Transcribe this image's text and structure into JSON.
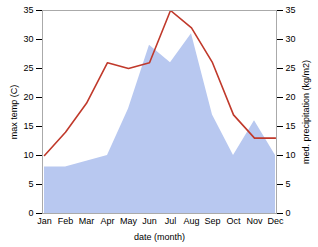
{
  "chart_data": {
    "type": "line",
    "categories": [
      "Jan",
      "Feb",
      "Mar",
      "Apr",
      "May",
      "Jun",
      "Jul",
      "Aug",
      "Sep",
      "Oct",
      "Nov",
      "Dec"
    ],
    "series": [
      {
        "type": "area",
        "color": "#b8c8f0",
        "values": [
          8,
          8,
          9,
          10,
          18,
          29,
          26,
          31,
          17,
          10,
          16,
          10
        ]
      },
      {
        "type": "line",
        "color": "#c0392b",
        "values": [
          10,
          14,
          19,
          26,
          25,
          26,
          35,
          32,
          26,
          17,
          13,
          13
        ]
      }
    ],
    "xlabel": "date (month)",
    "ylabel": "max temp (C)",
    "y2label": "med. precipitation (kg/m2)",
    "ylim": [
      0,
      35
    ],
    "yticks": [
      0,
      5,
      10,
      15,
      20,
      25,
      30,
      35
    ],
    "y2lim": [
      0,
      35
    ],
    "y2ticks": [
      0,
      5,
      10,
      15,
      20,
      25,
      30,
      35
    ]
  }
}
